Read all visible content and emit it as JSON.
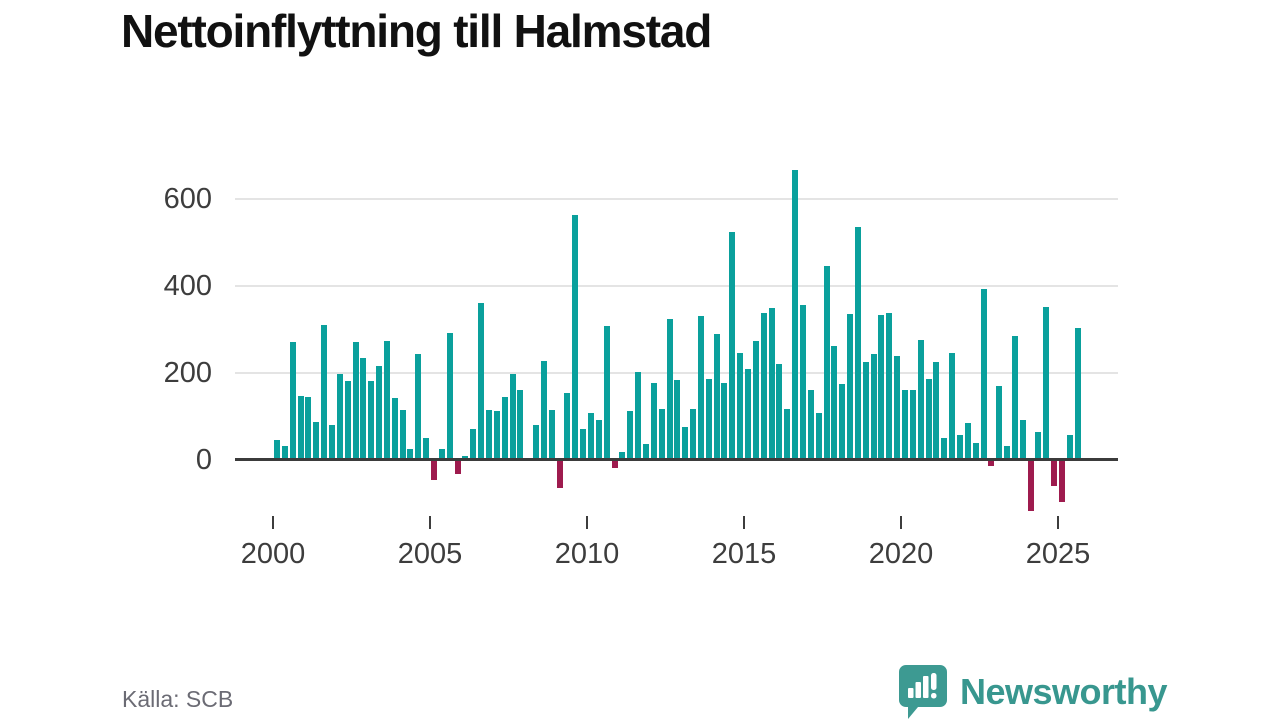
{
  "header": {
    "title": "Nettoinflyttning till Halmstad"
  },
  "footer": {
    "source": "Källa: SCB",
    "brand": "Newsworthy"
  },
  "colors": {
    "bar_positive": "#0aa09c",
    "bar_negative": "#9e1b4e",
    "gridline": "#e4e4e4",
    "zero_line": "#3b3b3b",
    "axis_text": "#3d3d3d",
    "title_text": "#111111",
    "source_text": "#6b6b74",
    "logo_teal": "#3d9a92"
  },
  "chart_data": {
    "type": "bar",
    "title": "Nettoinflyttning till Halmstad",
    "frequency": "quarterly",
    "start_period": "2000-Q1",
    "end_period": "2025-Q3",
    "x_tick_labels": [
      "2000",
      "2005",
      "2010",
      "2015",
      "2020",
      "2025"
    ],
    "y_ticks": [
      0,
      200,
      400,
      600
    ],
    "ylim": [
      -150,
      700
    ],
    "grid": true,
    "legend": "none",
    "series": [
      {
        "year": 2000,
        "values": [
          47,
          32,
          271,
          148
        ]
      },
      {
        "year": 2001,
        "values": [
          145,
          88,
          311,
          80
        ]
      },
      {
        "year": 2002,
        "values": [
          198,
          182,
          271,
          235
        ]
      },
      {
        "year": 2003,
        "values": [
          182,
          216,
          274,
          142
        ]
      },
      {
        "year": 2004,
        "values": [
          115,
          26,
          243,
          51
        ]
      },
      {
        "year": 2005,
        "values": [
          -44,
          25,
          293,
          -30
        ]
      },
      {
        "year": 2006,
        "values": [
          10,
          72,
          361,
          114
        ]
      },
      {
        "year": 2007,
        "values": [
          113,
          144,
          197,
          160
        ]
      },
      {
        "year": 2008,
        "values": [
          0,
          80,
          228,
          114
        ]
      },
      {
        "year": 2009,
        "values": [
          -62,
          154,
          563,
          72
        ]
      },
      {
        "year": 2010,
        "values": [
          108,
          92,
          309,
          -15
        ]
      },
      {
        "year": 2011,
        "values": [
          18,
          112,
          203,
          37
        ]
      },
      {
        "year": 2012,
        "values": [
          178,
          118,
          324,
          183
        ]
      },
      {
        "year": 2013,
        "values": [
          77,
          117,
          330,
          186
        ]
      },
      {
        "year": 2014,
        "values": [
          289,
          178,
          523,
          246
        ]
      },
      {
        "year": 2015,
        "values": [
          209,
          274,
          339,
          349
        ]
      },
      {
        "year": 2016,
        "values": [
          221,
          117,
          667,
          356
        ]
      },
      {
        "year": 2017,
        "values": [
          161,
          107,
          446,
          262
        ]
      },
      {
        "year": 2018,
        "values": [
          174,
          336,
          535,
          225
        ]
      },
      {
        "year": 2019,
        "values": [
          244,
          334,
          339,
          240
        ]
      },
      {
        "year": 2020,
        "values": [
          161,
          161,
          276,
          186
        ]
      },
      {
        "year": 2021,
        "values": [
          225,
          50,
          246,
          57
        ]
      },
      {
        "year": 2022,
        "values": [
          84,
          40,
          393,
          -11
        ]
      },
      {
        "year": 2023,
        "values": [
          170,
          32,
          285,
          92
        ]
      },
      {
        "year": 2024,
        "values": [
          -115,
          65,
          351,
          -57
        ]
      },
      {
        "year": 2025,
        "values": [
          -94,
          57,
          303
        ]
      }
    ]
  }
}
